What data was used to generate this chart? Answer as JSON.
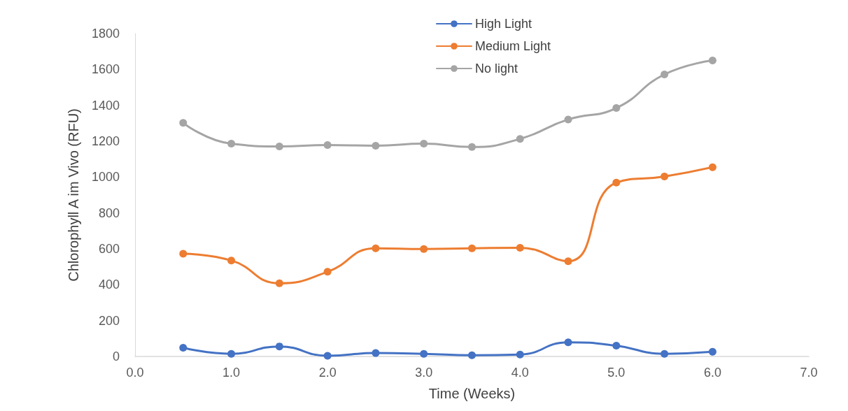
{
  "chart_data": {
    "type": "line",
    "xlabel": "Time (Weeks)",
    "ylabel": "Chlorophyll A im Vivo (RFU)",
    "x": [
      0.5,
      1.0,
      1.5,
      2.0,
      2.5,
      3.0,
      3.5,
      4.0,
      4.5,
      5.0,
      5.5,
      6.0
    ],
    "series": [
      {
        "name": "High Light",
        "color": "#4472c4",
        "values": [
          49,
          15,
          56,
          4,
          19,
          15,
          7,
          11,
          79,
          60,
          15,
          26
        ]
      },
      {
        "name": "Medium Light",
        "color": "#ed7d31",
        "values": [
          573,
          535,
          408,
          472,
          603,
          599,
          603,
          606,
          531,
          969,
          1003,
          1055
        ]
      },
      {
        "name": "No light",
        "color": "#a5a5a5",
        "values": [
          1302,
          1186,
          1171,
          1179,
          1175,
          1186,
          1168,
          1213,
          1321,
          1385,
          1572,
          1650
        ]
      }
    ],
    "xlim": [
      0,
      7
    ],
    "xticks": [
      {
        "value": 0,
        "label": "0.0"
      },
      {
        "value": 1,
        "label": "1.0"
      },
      {
        "value": 2,
        "label": "2.0"
      },
      {
        "value": 3,
        "label": "3.0"
      },
      {
        "value": 4,
        "label": "4.0"
      },
      {
        "value": 5,
        "label": "5.0"
      },
      {
        "value": 6,
        "label": "6.0"
      },
      {
        "value": 7,
        "label": "7.0"
      }
    ],
    "ylim": [
      0,
      1800
    ],
    "yticks": [
      0,
      200,
      400,
      600,
      800,
      1000,
      1200,
      1400,
      1600,
      1800
    ],
    "grid": false,
    "legend": "top",
    "marker": "circle",
    "line_style": "solid"
  }
}
